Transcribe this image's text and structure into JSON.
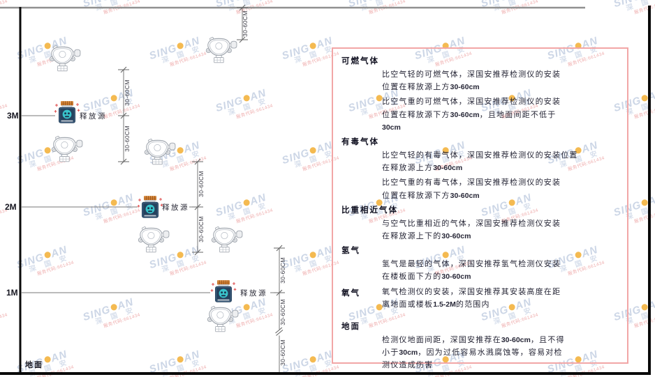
{
  "watermark": {
    "brand_left": "SING",
    "brand_right": "AN",
    "cjk": "深 国 安",
    "tagline": "服务代码:661434",
    "brand_color": "#c7d2e4",
    "dot_color": "#f3b33f",
    "tagline_color": "#eda4a4"
  },
  "diagram": {
    "height_marks": [
      "3M",
      "2M",
      "1M"
    ],
    "ground_label": "地面",
    "source_label": "释放源",
    "dim_label": "30-60CM",
    "colors": {
      "line": "#777777",
      "wall": "#0a0a0a",
      "ceiling": "#909090",
      "source_body": "#26425e",
      "source_cap": "#c9792f",
      "source_face": "#39c4cc",
      "sparkle": "#e05555",
      "detector": "#a2a8b0"
    }
  },
  "panel": {
    "border_color": "#f2a6a6",
    "sections": [
      {
        "heading": "可燃气体",
        "paragraphs": [
          [
            "比空气轻的可燃气体，深国安推荐检测仪的安装",
            "位置在释放源上方30-60cm"
          ],
          [
            "比空气重的可燃气体，深国安推荐检测仪的安装",
            "位置在释放源下方30-60cm，且地面间距不低于",
            "30cm"
          ]
        ]
      },
      {
        "heading": "有毒气体",
        "paragraphs": [
          [
            "比空气轻的有毒气体，深国安推荐检测仪的安装位置",
            "在释放源上方30-60cm"
          ],
          [
            "比空气重的有毒气体，深国安推荐检测仪的安装",
            "位置在释放源下方30-60cm"
          ]
        ]
      },
      {
        "heading": "比重相近气体",
        "paragraphs": [
          [
            "与空气比重相近的气体，深国安推荐检测仪安装",
            "在释放源上下的30-60cm"
          ]
        ]
      },
      {
        "heading": "氢气",
        "paragraphs": [
          [
            "氢气是最轻的气体，深国安推荐氢气检测仪安装",
            "在楼板面下方的30-60cm"
          ]
        ]
      },
      {
        "heading": "氧气",
        "inline": true,
        "paragraphs": [
          [
            "氧气检测仪的安装，深国安推荐其安装高度在距",
            "离地面或楼板1.5-2M的范围内"
          ]
        ]
      },
      {
        "heading": "地面",
        "gap_before": true,
        "paragraphs": [
          [
            "检测仪地面间距，深国安推荐在30-60cm，且不得",
            "小于30cm，因为过低容易水溅腐蚀等，容易对检",
            "测仪造成伤害"
          ]
        ]
      }
    ]
  }
}
